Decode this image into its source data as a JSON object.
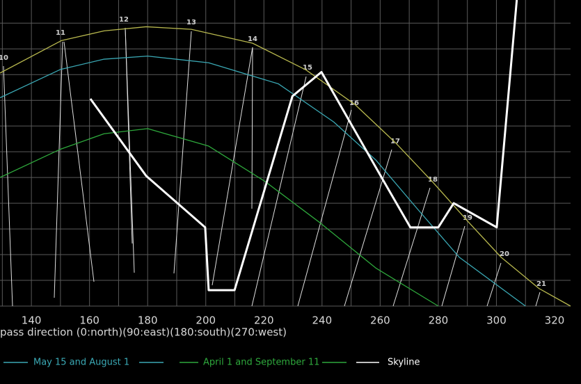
{
  "chart_data": {
    "type": "line",
    "x_label": "pass direction (0:north)(90:east)(180:south)(270:west)",
    "xlim": [
      129.2,
      329.1
    ],
    "ylim": [
      0,
      59.5
    ],
    "xticks": [
      140,
      160,
      180,
      200,
      220,
      240,
      260,
      280,
      300,
      320
    ],
    "xgrid": [
      130,
      140,
      150,
      160,
      170,
      180,
      190,
      200,
      210,
      220,
      230,
      240,
      250,
      260,
      270,
      280,
      290,
      300,
      310,
      320
    ],
    "ygrid": [
      0,
      5,
      10,
      15,
      20,
      25,
      30,
      35,
      40,
      45,
      50,
      55
    ],
    "grid": true,
    "hour_labels": [
      "10",
      "11",
      "12",
      "13",
      "14",
      "15",
      "16",
      "17",
      "18",
      "19",
      "20",
      "21"
    ],
    "series": [
      {
        "color": "#b8b84e",
        "x": [
          129.2,
          150.3,
          165,
          179.5,
          195.0,
          216.1,
          234.5,
          251.3,
          265.2,
          278.1,
          290.1,
          301.6,
          314.7,
          325.5
        ],
        "values": [
          45.3,
          51.6,
          53.5,
          54.3,
          53.8,
          51.1,
          45.9,
          39.2,
          31.8,
          24.1,
          16.5,
          9.5,
          3.4,
          0
        ]
      },
      {
        "name": "May 15 and August 1",
        "color": "#3aa8b4",
        "x": [
          129.2,
          150,
          165,
          180,
          201,
          225,
          244,
          258.5,
          272.8,
          287.2,
          310
        ],
        "values": [
          40.5,
          46.0,
          48.0,
          48.6,
          47.3,
          43.2,
          35.8,
          28.4,
          18.9,
          9.5,
          0
        ]
      },
      {
        "name": "April 1 and September 11",
        "color": "#2ea83c",
        "x": [
          129.2,
          150,
          165,
          180,
          201,
          220.2,
          239.3,
          258.5,
          280
        ],
        "values": [
          25,
          30.5,
          33.5,
          34.5,
          31.1,
          24.3,
          16.2,
          7.4,
          0
        ]
      },
      {
        "name": "Skyline",
        "color": "#ffffff",
        "x": [
          160.3,
          179.5,
          199.8,
          201,
          209.9,
          229.8,
          239.8,
          260.9,
          270.4,
          280,
          285.3,
          300.1,
          307
        ],
        "values": [
          40.3,
          25.3,
          15.3,
          3.1,
          3.1,
          40.8,
          45.5,
          24.6,
          15.3,
          15.3,
          20,
          15.3,
          59.5
        ]
      }
    ]
  }
}
